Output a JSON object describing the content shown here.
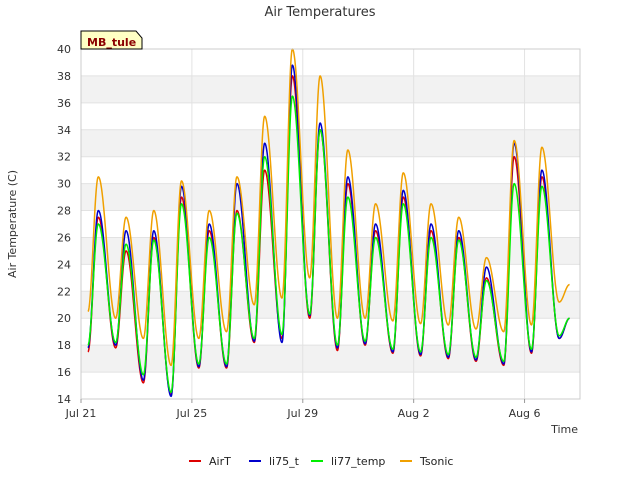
{
  "chart_data": {
    "type": "line",
    "title": "Air Temperatures",
    "xlabel": "Time",
    "ylabel": "Air Temperature (C)",
    "badge": "MB_tule",
    "ylim": [
      14,
      40
    ],
    "xlim": [
      "2024-07-21",
      "2024-08-08"
    ],
    "yticks": [
      14,
      16,
      18,
      20,
      22,
      24,
      26,
      28,
      30,
      32,
      34,
      36,
      38,
      40
    ],
    "xticks": [
      {
        "date": "2024-07-21",
        "label": "Jul 21"
      },
      {
        "date": "2024-07-25",
        "label": "Jul 25"
      },
      {
        "date": "2024-07-29",
        "label": "Jul 29"
      },
      {
        "date": "2024-08-02",
        "label": "Aug 2"
      },
      {
        "date": "2024-08-06",
        "label": "Aug 6"
      }
    ],
    "grid": true,
    "legend_position": "bottom",
    "daily": {
      "dates": [
        "2024-07-21",
        "2024-07-22",
        "2024-07-23",
        "2024-07-24",
        "2024-07-25",
        "2024-07-26",
        "2024-07-27",
        "2024-07-28",
        "2024-07-29",
        "2024-07-30",
        "2024-07-31",
        "2024-08-01",
        "2024-08-02",
        "2024-08-03",
        "2024-08-04",
        "2024-08-05",
        "2024-08-06",
        "2024-08-07"
      ],
      "min_time": "06:00",
      "max_time": "15:00"
    },
    "series": [
      {
        "name": "AirT",
        "color": "#dd0000",
        "daily_min": [
          17.5,
          17.8,
          15.2,
          14.3,
          16.3,
          16.3,
          18.2,
          18.5,
          20.0,
          17.6,
          18.0,
          17.4,
          17.2,
          17.0,
          16.8,
          16.5,
          17.4,
          18.5
        ],
        "daily_max": [
          27.5,
          25.0,
          26.0,
          29.0,
          26.5,
          28.0,
          31.0,
          38.0,
          34.0,
          30.0,
          26.5,
          29.0,
          26.5,
          26.0,
          23.0,
          32.0,
          30.5,
          20.0
        ]
      },
      {
        "name": "li75_t",
        "color": "#0000cc",
        "daily_min": [
          17.8,
          18.0,
          15.4,
          14.2,
          16.4,
          16.4,
          18.3,
          18.2,
          20.2,
          17.8,
          18.1,
          17.5,
          17.3,
          17.1,
          16.9,
          16.6,
          17.5,
          18.5
        ],
        "daily_max": [
          28.0,
          26.5,
          26.5,
          29.8,
          27.0,
          30.0,
          33.0,
          38.8,
          34.5,
          30.5,
          27.0,
          29.5,
          27.0,
          26.5,
          23.8,
          33.0,
          31.0,
          20.0
        ]
      },
      {
        "name": "li77_temp",
        "color": "#00ee00",
        "daily_min": [
          18.0,
          18.2,
          15.8,
          14.5,
          16.6,
          16.6,
          18.5,
          18.8,
          20.3,
          18.0,
          18.3,
          17.7,
          17.5,
          17.3,
          17.1,
          16.8,
          17.7,
          18.7
        ],
        "daily_max": [
          27.0,
          25.5,
          25.8,
          28.5,
          26.0,
          27.8,
          32.0,
          36.5,
          34.0,
          29.0,
          26.0,
          28.5,
          26.0,
          25.8,
          22.8,
          30.0,
          29.8,
          20.0
        ]
      },
      {
        "name": "Tsonic",
        "color": "#f0a000",
        "daily_min": [
          20.5,
          20.0,
          18.5,
          16.5,
          18.5,
          19.0,
          21.0,
          21.5,
          23.0,
          20.0,
          20.0,
          19.8,
          19.6,
          19.5,
          19.2,
          19.0,
          19.5,
          21.2
        ],
        "daily_max": [
          30.5,
          27.5,
          28.0,
          30.2,
          28.0,
          30.5,
          35.0,
          40.0,
          38.0,
          32.5,
          28.5,
          30.8,
          28.5,
          27.5,
          24.5,
          33.2,
          32.7,
          22.5
        ]
      }
    ]
  }
}
